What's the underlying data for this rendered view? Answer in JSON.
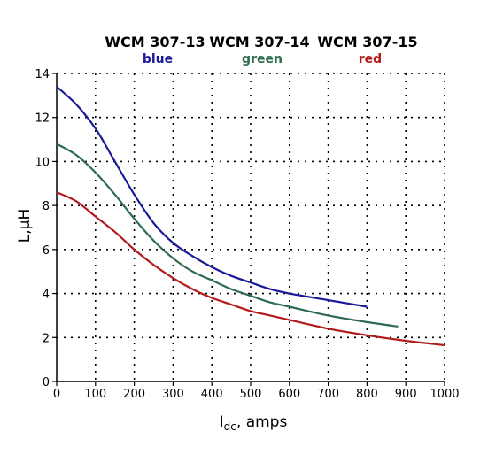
{
  "chart_data": {
    "type": "line",
    "xlabel_main": "I",
    "xlabel_sub": "dc",
    "xlabel_rest": ", amps",
    "ylabel": "L,μH",
    "xlim": [
      0,
      1000
    ],
    "ylim": [
      0,
      14
    ],
    "x_ticks": [
      0,
      100,
      200,
      300,
      400,
      500,
      600,
      700,
      800,
      900,
      1000
    ],
    "y_ticks": [
      0,
      2,
      4,
      6,
      8,
      10,
      12,
      14
    ],
    "grid": true,
    "legend_position": "top",
    "series": [
      {
        "name": "WCM 307-13",
        "color_label": "blue",
        "color": "#1a1a99",
        "points": [
          [
            0,
            13.4
          ],
          [
            50,
            12.6
          ],
          [
            100,
            11.5
          ],
          [
            150,
            10.0
          ],
          [
            200,
            8.5
          ],
          [
            250,
            7.2
          ],
          [
            300,
            6.3
          ],
          [
            350,
            5.7
          ],
          [
            400,
            5.2
          ],
          [
            450,
            4.8
          ],
          [
            500,
            4.5
          ],
          [
            550,
            4.2
          ],
          [
            600,
            4.0
          ],
          [
            700,
            3.7
          ],
          [
            800,
            3.4
          ]
        ]
      },
      {
        "name": "WCM 307-14",
        "color_label": "green",
        "color": "#2e6b4f",
        "points": [
          [
            0,
            10.8
          ],
          [
            50,
            10.3
          ],
          [
            100,
            9.5
          ],
          [
            150,
            8.5
          ],
          [
            200,
            7.4
          ],
          [
            250,
            6.4
          ],
          [
            300,
            5.6
          ],
          [
            350,
            5.0
          ],
          [
            400,
            4.6
          ],
          [
            450,
            4.2
          ],
          [
            500,
            3.9
          ],
          [
            550,
            3.6
          ],
          [
            600,
            3.4
          ],
          [
            700,
            3.0
          ],
          [
            800,
            2.7
          ],
          [
            880,
            2.5
          ]
        ]
      },
      {
        "name": "WCM 307-15",
        "color_label": "red",
        "color": "#b31b1b",
        "points": [
          [
            0,
            8.6
          ],
          [
            50,
            8.2
          ],
          [
            100,
            7.5
          ],
          [
            150,
            6.8
          ],
          [
            200,
            6.0
          ],
          [
            250,
            5.3
          ],
          [
            300,
            4.7
          ],
          [
            350,
            4.2
          ],
          [
            400,
            3.8
          ],
          [
            450,
            3.5
          ],
          [
            500,
            3.2
          ],
          [
            550,
            3.0
          ],
          [
            600,
            2.8
          ],
          [
            700,
            2.4
          ],
          [
            800,
            2.1
          ],
          [
            900,
            1.85
          ],
          [
            1000,
            1.65
          ]
        ]
      }
    ]
  }
}
